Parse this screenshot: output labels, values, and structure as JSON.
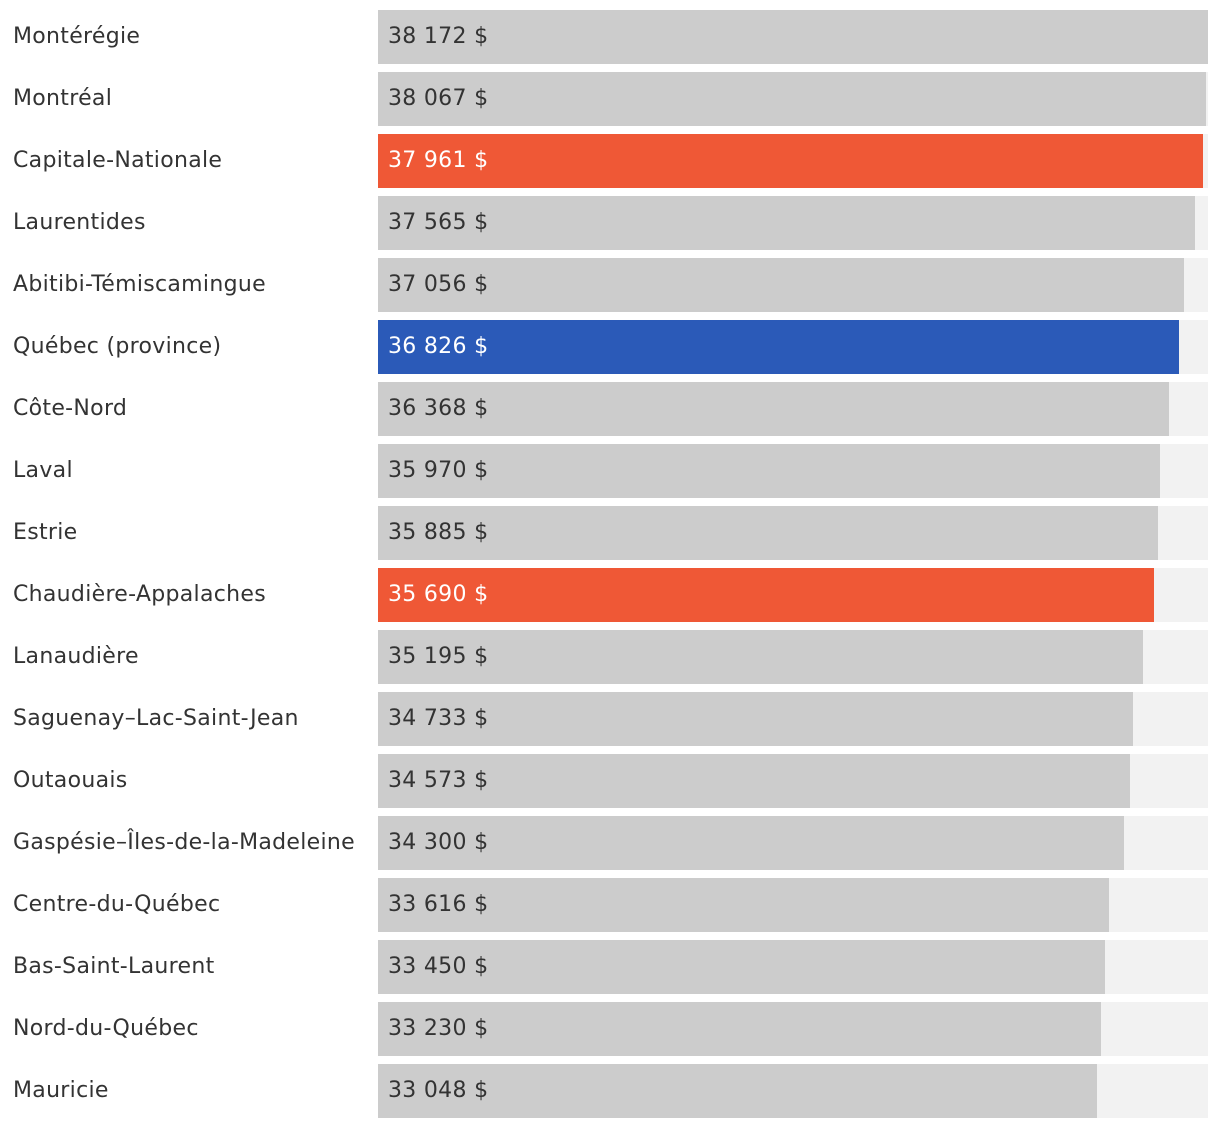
{
  "chart_data": {
    "type": "bar",
    "orientation": "horizontal",
    "title": "",
    "xlabel": "",
    "ylabel": "",
    "xlim": [
      0,
      38172
    ],
    "unit_suffix": " $",
    "categories": [
      "Montérégie",
      "Montréal",
      "Capitale-Nationale",
      "Laurentides",
      "Abitibi-Témiscamingue",
      "Québec (province)",
      "Côte-Nord",
      "Laval",
      "Estrie",
      "Chaudière-Appalaches",
      "Lanaudière",
      "Saguenay–Lac-Saint-Jean",
      "Outaouais",
      "Gaspésie–Îles-de-la-Madeleine",
      "Centre-du-Québec",
      "Bas-Saint-Laurent",
      "Nord-du-Québec",
      "Mauricie"
    ],
    "values": [
      38172,
      38067,
      37961,
      37565,
      37056,
      36826,
      36368,
      35970,
      35885,
      35690,
      35195,
      34733,
      34573,
      34300,
      33616,
      33450,
      33230,
      33048
    ],
    "value_labels": [
      "38 172 $",
      "38 067 $",
      "37 961 $",
      "37 565 $",
      "37 056 $",
      "36 826 $",
      "36 368 $",
      "35 970 $",
      "35 885 $",
      "35 690 $",
      "35 195 $",
      "34 733 $",
      "34 573 $",
      "34 300 $",
      "33 616 $",
      "33 450 $",
      "33 230 $",
      "33 048 $"
    ],
    "highlight": {
      "Capitale-Nationale": "orange",
      "Chaudière-Appalaches": "orange",
      "Québec (province)": "blue"
    }
  },
  "colors": {
    "default_bar": "#cccccc",
    "track": "#f2f2f2",
    "orange": "#ef5836",
    "blue": "#2b5ab8",
    "text_dark": "#333333",
    "text_light": "#ffffff"
  }
}
